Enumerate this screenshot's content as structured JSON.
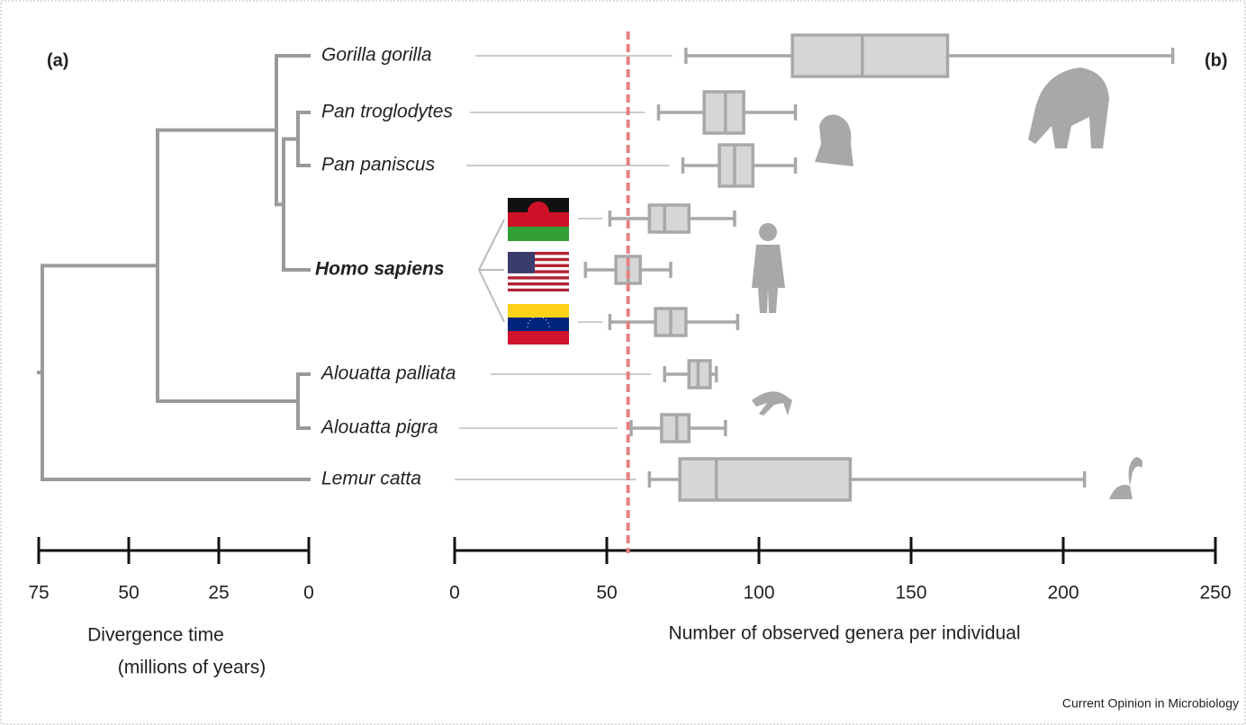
{
  "chart_data": [
    {
      "type": "tree",
      "panel_label": "(a)",
      "xlabel": [
        "Divergence time",
        "(millions of years)"
      ],
      "xlim": [
        75,
        0
      ],
      "xticks": [
        75,
        50,
        25,
        0
      ],
      "color": "#9a9a9a",
      "tree": {
        "time": 74,
        "children": [
          {
            "time": 42,
            "children": [
              {
                "time": 9,
                "children": [
                  "Gorilla gorilla",
                  {
                    "time": 7,
                    "children": [
                      {
                        "time": 3,
                        "children": [
                          "Pan troglodytes",
                          "Pan paniscus"
                        ]
                      },
                      "Homo sapiens"
                    ]
                  }
                ]
              },
              {
                "time": 3,
                "children": [
                  "Alouatta palliata",
                  "Alouatta pigra"
                ]
              }
            ]
          },
          "Lemur catta"
        ]
      }
    },
    {
      "type": "box",
      "panel_label": "(b)",
      "xlabel": "Number of observed genera per individual",
      "xlim": [
        0,
        250
      ],
      "xticks": [
        0,
        50,
        100,
        150,
        200,
        250
      ],
      "color": "#d6d6d6",
      "edge_color": "#a8a8a8",
      "reference_line": 57,
      "reference_color": "#e88080",
      "boxes": [
        {
          "min": 76,
          "q1": 111,
          "median": 134,
          "q3": 162,
          "max": 236
        },
        {
          "min": 67,
          "q1": 82,
          "median": 89,
          "q3": 95,
          "max": 112
        },
        {
          "min": 75,
          "q1": 87,
          "median": 92,
          "q3": 98,
          "max": 112
        },
        {
          "min": 51,
          "q1": 64,
          "median": 69,
          "q3": 77,
          "max": 92
        },
        {
          "min": 43,
          "q1": 53,
          "median": 57,
          "q3": 61,
          "max": 71
        },
        {
          "min": 51,
          "q1": 66,
          "median": 71,
          "q3": 76,
          "max": 93
        },
        {
          "min": 69,
          "q1": 77,
          "median": 80,
          "q3": 84,
          "max": 86
        },
        {
          "min": 58,
          "q1": 68,
          "median": 73,
          "q3": 77,
          "max": 89
        },
        {
          "min": 64,
          "q1": 74,
          "median": 86,
          "q3": 130,
          "max": 207
        }
      ]
    }
  ],
  "source": "Current Opinion in Microbiology"
}
